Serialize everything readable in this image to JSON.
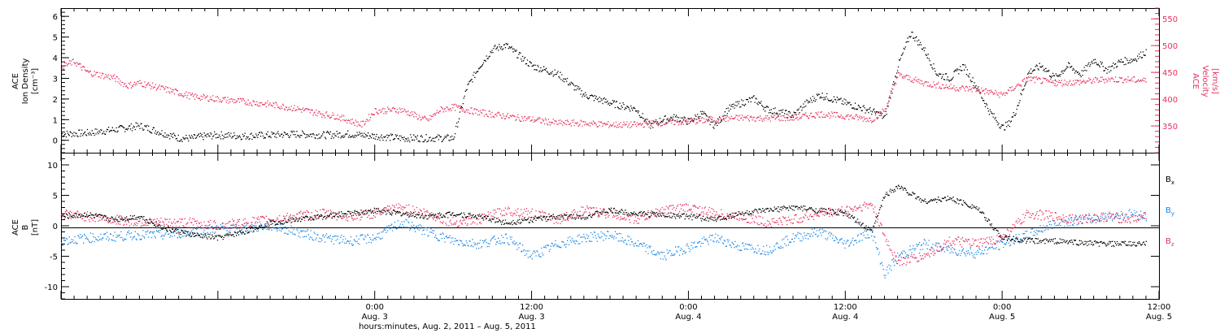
{
  "chart_data": [
    {
      "panel": "top",
      "type": "scatter",
      "ylabel_left": [
        "ACE",
        "Ion Density",
        "[cm⁻³]"
      ],
      "ylabel_right": [
        "ACE",
        "Velocity",
        "[km/s]"
      ],
      "ylim_left": [
        -0.6,
        6.4
      ],
      "ylim_right": [
        300,
        570
      ],
      "yticks_left": [
        0,
        1,
        2,
        3,
        4,
        5,
        6
      ],
      "yticks_right": [
        350,
        400,
        450,
        500,
        550
      ],
      "xlim_hours": [
        0,
        84
      ],
      "colors": {
        "density": "#000000",
        "velocity": "#e8305e"
      },
      "series": [
        {
          "name": "Ion Density",
          "axis": "left",
          "color": "#000000",
          "x_hours": [
            0,
            2,
            4,
            6,
            8,
            9,
            10,
            11,
            12,
            14,
            16,
            18,
            20,
            22,
            24,
            26,
            28,
            29,
            30,
            31,
            32,
            33,
            34,
            36,
            38,
            40,
            42,
            44,
            45,
            46,
            47,
            48,
            49,
            50,
            51,
            52,
            53,
            54,
            56,
            57,
            58,
            60,
            62,
            63,
            64,
            65,
            66,
            67,
            68,
            69,
            70,
            71,
            72,
            72.5,
            73,
            74,
            75,
            76,
            77,
            78,
            79,
            80,
            81,
            82,
            83
          ],
          "y": [
            0.3,
            0.35,
            0.5,
            0.7,
            0.3,
            0.1,
            0.1,
            0.2,
            0.25,
            0.2,
            0.25,
            0.3,
            0.25,
            0.3,
            0.2,
            0.1,
            0.1,
            0.1,
            0.1,
            2.5,
            3.6,
            4.4,
            4.6,
            3.6,
            3.2,
            2.2,
            1.8,
            1.5,
            0.7,
            1.0,
            1.1,
            0.9,
            1.3,
            0.7,
            1.5,
            1.8,
            2.0,
            1.5,
            1.2,
            1.8,
            2.2,
            1.8,
            1.4,
            1.1,
            3.6,
            5.2,
            4.4,
            3.2,
            3.0,
            3.6,
            2.6,
            1.4,
            0.6,
            0.8,
            1.4,
            3.3,
            3.6,
            3.0,
            3.6,
            3.2,
            3.9,
            3.4,
            3.8,
            3.9,
            4.3
          ]
        },
        {
          "name": "Velocity",
          "axis": "right",
          "color": "#e8305e",
          "x_hours": [
            0,
            1,
            2,
            3,
            4,
            5,
            6,
            8,
            10,
            12,
            14,
            16,
            18,
            20,
            21,
            22,
            23,
            24,
            26,
            28,
            29,
            30,
            32,
            34,
            36,
            38,
            40,
            42,
            44,
            46,
            48,
            50,
            52,
            54,
            56,
            58,
            60,
            62,
            63,
            64,
            66,
            68,
            70,
            72,
            74,
            76,
            78,
            80,
            82,
            83
          ],
          "y": [
            460,
            470,
            450,
            445,
            440,
            425,
            430,
            418,
            405,
            400,
            395,
            390,
            382,
            372,
            368,
            360,
            352,
            378,
            380,
            360,
            380,
            385,
            375,
            368,
            362,
            355,
            355,
            352,
            352,
            356,
            358,
            362,
            365,
            364,
            365,
            372,
            368,
            362,
            380,
            445,
            430,
            422,
            418,
            408,
            438,
            430,
            432,
            437,
            436,
            434
          ]
        }
      ]
    },
    {
      "panel": "bottom",
      "type": "scatter",
      "ylabel_left": [
        "ACE",
        "B",
        "[nT]"
      ],
      "ylim": [
        -12,
        12
      ],
      "yticks": [
        -10,
        -5,
        0,
        5,
        10
      ],
      "xlim_hours": [
        0,
        84
      ],
      "zero_line": true,
      "legend": [
        {
          "label": "Bx",
          "color": "#000000"
        },
        {
          "label": "By",
          "color": "#1e88e5"
        },
        {
          "label": "Bz",
          "color": "#e8305e"
        }
      ],
      "legend_position": "right",
      "series": [
        {
          "name": "Bx",
          "color": "#000000",
          "x_hours": [
            0,
            2,
            4,
            6,
            8,
            9,
            10,
            12,
            14,
            16,
            18,
            20,
            22,
            24,
            26,
            28,
            30,
            32,
            34,
            36,
            38,
            40,
            42,
            44,
            46,
            48,
            50,
            52,
            54,
            56,
            58,
            60,
            62,
            63,
            64,
            66,
            68,
            70,
            72,
            74,
            76,
            78,
            80,
            82,
            83
          ],
          "y": [
            1.5,
            1.8,
            1.0,
            1.5,
            -0.5,
            -1.0,
            -1.5,
            -2.0,
            -1.0,
            0.5,
            1.0,
            1.5,
            2.0,
            2.5,
            2.0,
            1.5,
            2.0,
            1.5,
            0.5,
            1.0,
            1.5,
            1.5,
            2.5,
            2.0,
            1.8,
            1.5,
            1.0,
            2.0,
            2.5,
            3.0,
            2.5,
            2.0,
            -1.0,
            5.0,
            6.5,
            4.0,
            4.5,
            3.0,
            -2.0,
            -2.5,
            -2.5,
            -2.8,
            -3.0,
            -3.0,
            -3.0
          ]
        },
        {
          "name": "By",
          "color": "#1e88e5",
          "x_hours": [
            0,
            2,
            4,
            6,
            8,
            10,
            12,
            14,
            16,
            18,
            20,
            22,
            24,
            26,
            28,
            30,
            32,
            34,
            36,
            38,
            40,
            42,
            44,
            46,
            48,
            50,
            52,
            54,
            56,
            58,
            60,
            62,
            63,
            64,
            66,
            68,
            70,
            72,
            74,
            76,
            78,
            80,
            82,
            83
          ],
          "y": [
            -2.5,
            -2.0,
            -1.8,
            -1.5,
            -1.5,
            -1.0,
            -0.5,
            -0.5,
            0.0,
            -1.0,
            -2.0,
            -2.5,
            -2.0,
            0.5,
            -1.0,
            -2.5,
            -3.0,
            -2.0,
            -5.0,
            -3.0,
            -2.0,
            -1.5,
            -3.0,
            -5.0,
            -3.5,
            -2.0,
            -3.5,
            -4.0,
            -2.0,
            -1.0,
            -3.0,
            -1.0,
            -8.0,
            -5.0,
            -3.0,
            -4.0,
            -4.5,
            -3.0,
            -1.5,
            0.5,
            1.0,
            1.5,
            2.0,
            1.5
          ]
        },
        {
          "name": "Bz",
          "color": "#e8305e",
          "x_hours": [
            0,
            2,
            4,
            6,
            8,
            10,
            12,
            14,
            16,
            18,
            20,
            22,
            24,
            26,
            28,
            30,
            32,
            34,
            36,
            38,
            40,
            42,
            44,
            46,
            48,
            50,
            52,
            54,
            56,
            58,
            60,
            62,
            63,
            64,
            66,
            68,
            70,
            72,
            74,
            76,
            78,
            80,
            82,
            83
          ],
          "y": [
            2.0,
            1.5,
            1.0,
            0.5,
            0.5,
            0.5,
            0.0,
            0.5,
            1.0,
            1.5,
            2.0,
            1.5,
            2.0,
            3.0,
            2.0,
            0.5,
            1.0,
            2.5,
            2.0,
            1.0,
            2.5,
            2.0,
            1.0,
            2.5,
            3.0,
            2.0,
            1.5,
            0.5,
            1.0,
            2.0,
            2.5,
            3.5,
            -2.0,
            -6.0,
            -5.0,
            -2.5,
            -3.0,
            -2.0,
            2.0,
            1.5,
            1.0,
            1.5,
            1.0,
            1.8
          ]
        }
      ]
    }
  ],
  "x_axis": {
    "ticks": [
      {
        "hour": 24,
        "time": "0:00",
        "date": "Aug. 3"
      },
      {
        "hour": 36,
        "time": "12:00",
        "date": "Aug. 3"
      },
      {
        "hour": 48,
        "time": "0:00",
        "date": "Aug. 4"
      },
      {
        "hour": 60,
        "time": "12:00",
        "date": "Aug. 4"
      },
      {
        "hour": 72,
        "time": "0:00",
        "date": "Aug. 5"
      },
      {
        "hour": 84,
        "time": "12:00",
        "date": "Aug. 5"
      }
    ],
    "xlabel": "hours:minutes, Aug.  2, 2011 – Aug.  5, 2011"
  },
  "legend_text": {
    "bx_base": "B",
    "bx_sub": "x",
    "by_base": "B",
    "by_sub": "y",
    "bz_base": "B",
    "bz_sub": "z"
  }
}
